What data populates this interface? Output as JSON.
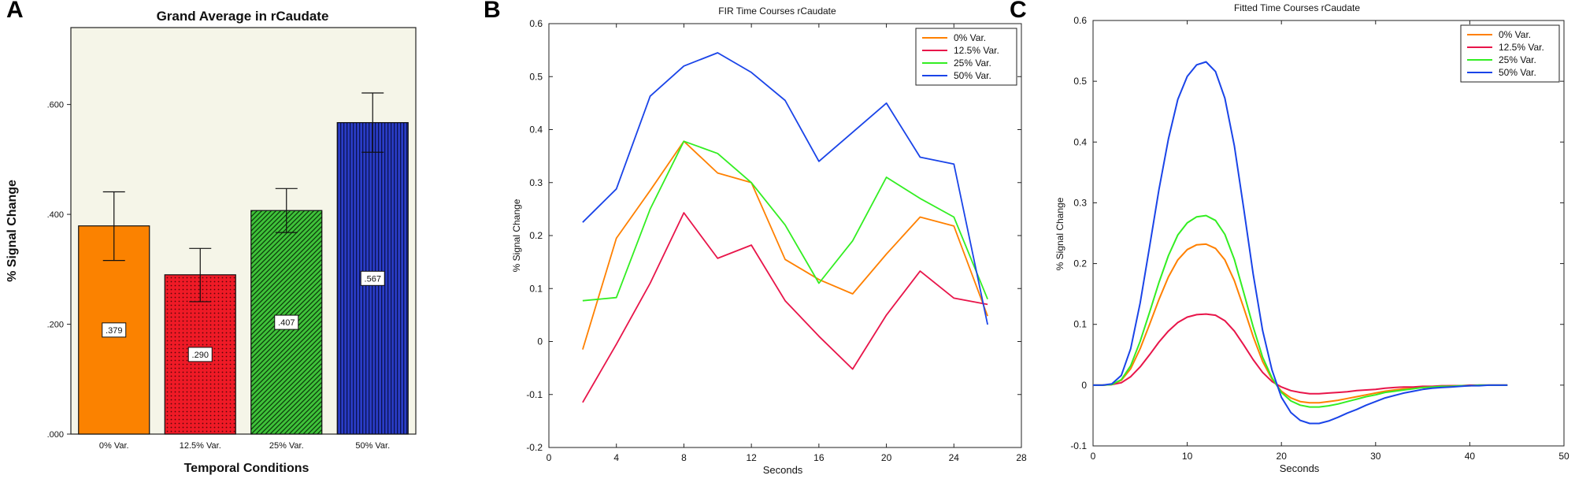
{
  "panels": {
    "a": {
      "letter": "A"
    },
    "b": {
      "letter": "B"
    },
    "c": {
      "letter": "C"
    }
  },
  "chart_data": [
    {
      "type": "bar",
      "title": "Grand Average in rCaudate",
      "xlabel": "Temporal Conditions",
      "ylabel": "% Signal Change",
      "categories": [
        "0% Var.",
        "12.5% Var.",
        "25% Var.",
        "50% Var."
      ],
      "values": [
        0.379,
        0.29,
        0.407,
        0.567
      ],
      "value_labels": [
        ".379",
        ".290",
        ".407",
        ".567"
      ],
      "error_low": [
        0.316,
        0.241,
        0.367,
        0.513
      ],
      "error_high": [
        0.441,
        0.338,
        0.447,
        0.621
      ],
      "ylim": [
        0,
        0.74
      ],
      "yticks": [
        0,
        0.2,
        0.4,
        0.6
      ],
      "ytick_labels": [
        ".000",
        ".200",
        ".400",
        ".600"
      ],
      "colors": [
        "#fb8200",
        "#ef1a26",
        "#22a21f",
        "#2233b0"
      ],
      "patterns": [
        "solid",
        "dots",
        "diagonal",
        "vertical"
      ]
    },
    {
      "type": "line",
      "title": "FIR Time Courses rCaudate",
      "xlabel": "Seconds",
      "ylabel": "% Signal Change",
      "xlim": [
        0,
        28
      ],
      "ylim": [
        -0.2,
        0.6
      ],
      "xticks": [
        0,
        4,
        8,
        12,
        16,
        20,
        24,
        28
      ],
      "yticks": [
        -0.2,
        -0.1,
        0,
        0.1,
        0.2,
        0.3,
        0.4,
        0.5,
        0.6
      ],
      "ytick_labels": [
        "-0.2",
        "-0.1",
        "0",
        "0.1",
        "0.2",
        "0.3",
        "0.4",
        "0.5",
        "0.6"
      ],
      "x": [
        2,
        4,
        6,
        8,
        10,
        12,
        14,
        16,
        18,
        20,
        22,
        24,
        26
      ],
      "legend_position": "top-right",
      "series": [
        {
          "name": "0% Var.",
          "color": "#ff8000",
          "values": [
            -0.015,
            0.195,
            0.285,
            0.378,
            0.318,
            0.3,
            0.155,
            0.117,
            0.09,
            0.165,
            0.235,
            0.218,
            0.048
          ]
        },
        {
          "name": "12.5% Var.",
          "color": "#e8154a",
          "values": [
            -0.115,
            -0.005,
            0.11,
            0.243,
            0.157,
            0.182,
            0.077,
            0.01,
            -0.052,
            0.05,
            0.133,
            0.082,
            0.07
          ]
        },
        {
          "name": "25% Var.",
          "color": "#33ee22",
          "values": [
            0.077,
            0.083,
            0.25,
            0.378,
            0.355,
            0.3,
            0.22,
            0.11,
            0.19,
            0.31,
            0.27,
            0.235,
            0.08
          ]
        },
        {
          "name": "50% Var.",
          "color": "#1a44e8",
          "values": [
            0.225,
            0.288,
            0.463,
            0.52,
            0.545,
            0.508,
            0.455,
            0.34,
            0.395,
            0.45,
            0.348,
            0.335,
            0.032
          ]
        }
      ]
    },
    {
      "type": "line",
      "title": "Fitted Time Courses rCaudate",
      "xlabel": "Seconds",
      "ylabel": "% Signal Change",
      "xlim": [
        0,
        50
      ],
      "ylim": [
        -0.1,
        0.6
      ],
      "xticks": [
        0,
        10,
        20,
        30,
        40,
        50
      ],
      "yticks": [
        -0.1,
        0,
        0.1,
        0.2,
        0.3,
        0.4,
        0.5,
        0.6
      ],
      "ytick_labels": [
        "-0.1",
        "0",
        "0.1",
        "0.2",
        "0.3",
        "0.4",
        "0.5",
        "0.6"
      ],
      "x": [
        0,
        1,
        2,
        3,
        4,
        5,
        6,
        7,
        8,
        9,
        10,
        11,
        12,
        13,
        14,
        15,
        16,
        17,
        18,
        19,
        20,
        21,
        22,
        23,
        24,
        25,
        26,
        27,
        28,
        29,
        30,
        31,
        32,
        33,
        34,
        35,
        36,
        37,
        38,
        39,
        40,
        41,
        42,
        43,
        44
      ],
      "legend_position": "top-right",
      "series": [
        {
          "name": "0% Var.",
          "color": "#ff8000",
          "values": [
            0,
            0,
            0.001,
            0.008,
            0.027,
            0.06,
            0.1,
            0.141,
            0.178,
            0.206,
            0.223,
            0.231,
            0.232,
            0.225,
            0.206,
            0.172,
            0.127,
            0.08,
            0.039,
            0.01,
            -0.01,
            -0.021,
            -0.027,
            -0.029,
            -0.029,
            -0.027,
            -0.025,
            -0.022,
            -0.019,
            -0.016,
            -0.013,
            -0.01,
            -0.008,
            -0.006,
            -0.005,
            -0.004,
            -0.003,
            -0.002,
            -0.001,
            -0.001,
            -0.001,
            0,
            0,
            0,
            0
          ]
        },
        {
          "name": "12.5% Var.",
          "color": "#e8154a",
          "values": [
            0,
            0,
            0.001,
            0.004,
            0.014,
            0.03,
            0.05,
            0.071,
            0.089,
            0.103,
            0.112,
            0.116,
            0.117,
            0.115,
            0.106,
            0.089,
            0.066,
            0.042,
            0.021,
            0.006,
            -0.003,
            -0.009,
            -0.012,
            -0.014,
            -0.014,
            -0.013,
            -0.012,
            -0.011,
            -0.009,
            -0.008,
            -0.007,
            -0.005,
            -0.004,
            -0.003,
            -0.003,
            -0.002,
            -0.002,
            -0.001,
            -0.001,
            -0.001,
            0,
            0,
            0,
            0,
            0
          ]
        },
        {
          "name": "25% Var.",
          "color": "#33ee22",
          "values": [
            0,
            0,
            0.001,
            0.009,
            0.032,
            0.072,
            0.12,
            0.169,
            0.213,
            0.247,
            0.267,
            0.277,
            0.279,
            0.271,
            0.248,
            0.207,
            0.152,
            0.096,
            0.046,
            0.012,
            -0.012,
            -0.026,
            -0.033,
            -0.036,
            -0.036,
            -0.034,
            -0.031,
            -0.027,
            -0.023,
            -0.019,
            -0.016,
            -0.012,
            -0.01,
            -0.008,
            -0.006,
            -0.004,
            -0.003,
            -0.002,
            -0.002,
            -0.001,
            -0.001,
            0,
            0,
            0,
            0
          ]
        },
        {
          "name": "50% Var.",
          "color": "#1a44e8",
          "values": [
            0,
            0,
            0.002,
            0.016,
            0.06,
            0.135,
            0.228,
            0.322,
            0.405,
            0.47,
            0.508,
            0.527,
            0.532,
            0.516,
            0.472,
            0.394,
            0.29,
            0.183,
            0.09,
            0.025,
            -0.02,
            -0.045,
            -0.058,
            -0.063,
            -0.063,
            -0.059,
            -0.053,
            -0.046,
            -0.04,
            -0.033,
            -0.027,
            -0.021,
            -0.017,
            -0.013,
            -0.01,
            -0.007,
            -0.005,
            -0.004,
            -0.003,
            -0.002,
            -0.001,
            -0.001,
            0,
            0,
            0
          ]
        }
      ]
    }
  ]
}
